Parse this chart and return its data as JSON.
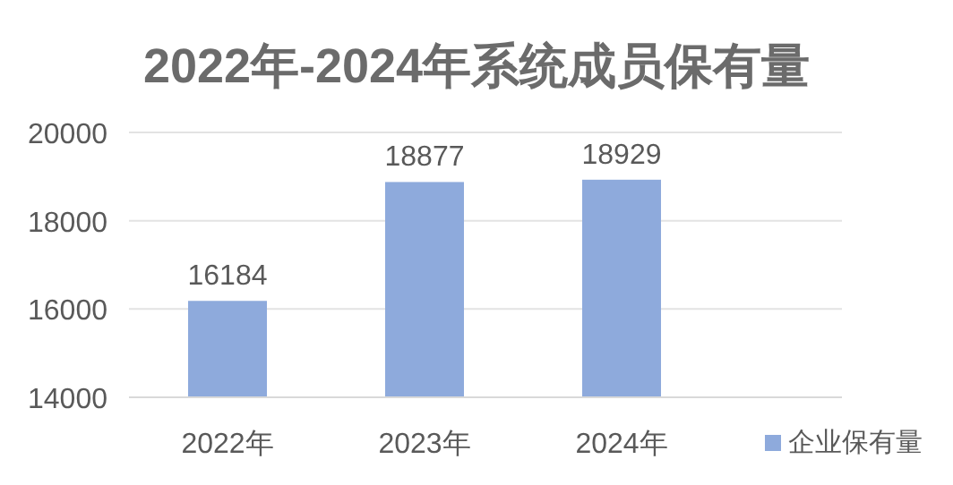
{
  "chart_data": {
    "type": "bar",
    "title": "2022年-2024年系统成员保有量",
    "categories": [
      "2022年",
      "2023年",
      "2024年"
    ],
    "series": [
      {
        "name": "企业保有量",
        "color": "#8eaadc",
        "values": [
          16184,
          18877,
          18929
        ]
      }
    ],
    "ylim": [
      14000,
      20000
    ],
    "yticks": [
      14000,
      16000,
      18000,
      20000
    ],
    "grid": "y",
    "legend": "bottom right",
    "data_labels": true
  }
}
